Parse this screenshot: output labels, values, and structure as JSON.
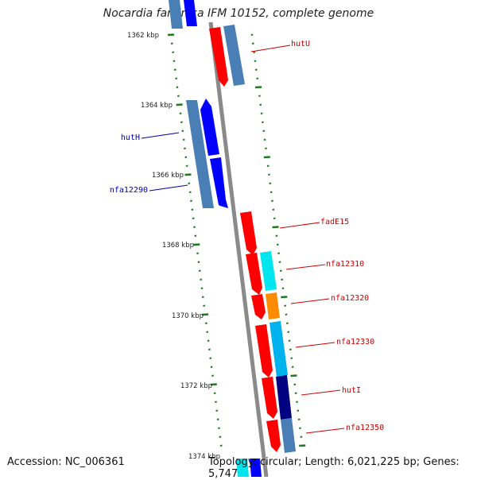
{
  "title": "Nocardia farcinica IFM 10152, complete genome",
  "accession": "Accession: NC_006361",
  "topology": "Topology: circular; Length: 6,021,225 bp; Genes: 5,747",
  "colors": {
    "backbone": "#8a8a8a",
    "tick": "#1f7a1f",
    "forward_label": "#cc0000",
    "reverse_label": "#0000aa",
    "red": "#ff0000",
    "blue": "#0000ff",
    "steelblue": "#4a7fb5",
    "cyan": "#00e5ee",
    "deepskyblue": "#00b2ee",
    "orange": "#ff8c00",
    "navy": "#000080"
  },
  "position_labels": [
    "1362 kbp",
    "1364 kbp",
    "1366 kbp",
    "1368 kbp",
    "1370 kbp",
    "1372 kbp",
    "1374 kbp"
  ],
  "genes": [
    {
      "name": "hutU",
      "strand": "forward"
    },
    {
      "name": "hutH",
      "strand": "reverse"
    },
    {
      "name": "nfa12290",
      "strand": "reverse"
    },
    {
      "name": "fadE15",
      "strand": "forward"
    },
    {
      "name": "nfa12310",
      "strand": "forward"
    },
    {
      "name": "nfa12320",
      "strand": "forward"
    },
    {
      "name": "nfa12330",
      "strand": "forward"
    },
    {
      "name": "hutI",
      "strand": "forward"
    },
    {
      "name": "nfa12350",
      "strand": "forward"
    }
  ]
}
